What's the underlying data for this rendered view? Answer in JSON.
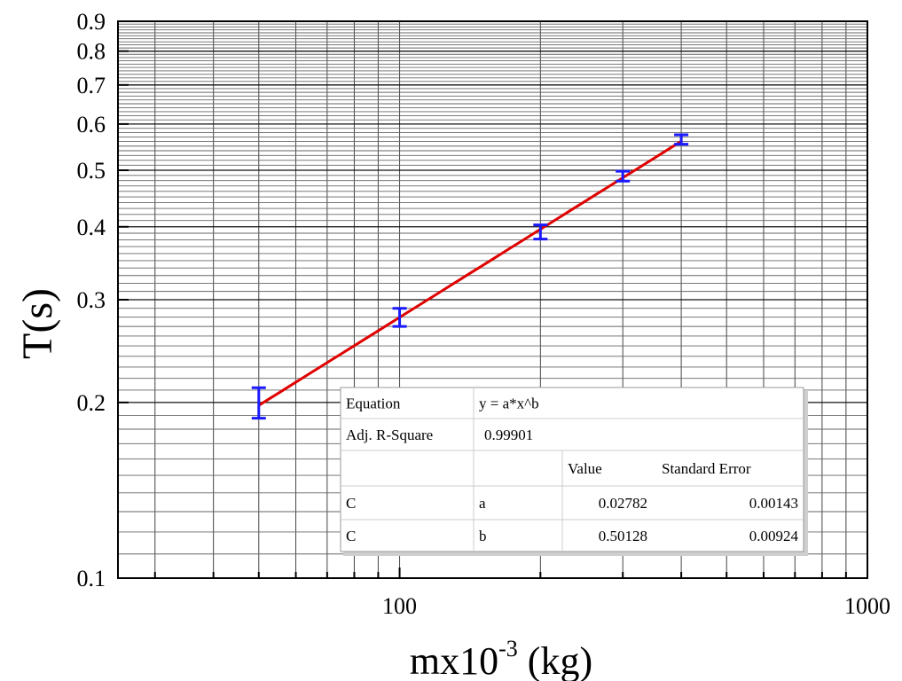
{
  "chart_data": {
    "type": "scatter",
    "scale": {
      "x": "log",
      "y": "log"
    },
    "xlabel": {
      "base": "mx10",
      "superscript": "-3",
      "unit": " (kg)"
    },
    "ylabel": "T(s)",
    "xlim": [
      25,
      1000
    ],
    "ylim": [
      0.1,
      0.9
    ],
    "x_ticks": [
      100,
      1000
    ],
    "x_tick_labels": [
      "100",
      "1000"
    ],
    "y_ticks": [
      0.1,
      0.2,
      0.3,
      0.4,
      0.5,
      0.6,
      0.7,
      0.8,
      0.9
    ],
    "y_tick_labels": [
      "0.1",
      "0.2",
      "0.3",
      "0.4",
      "0.5",
      "0.6",
      "0.7",
      "0.8",
      "0.9"
    ],
    "grid": true,
    "series": [
      {
        "x": [
          50,
          100,
          200,
          300,
          400
        ],
        "y": [
          0.199,
          0.279,
          0.392,
          0.488,
          0.564
        ],
        "err_low": [
          0.188,
          0.27,
          0.381,
          0.479,
          0.554
        ],
        "err_high": [
          0.212,
          0.29,
          0.403,
          0.498,
          0.575
        ],
        "color": "#1a1aff"
      }
    ],
    "fit": {
      "a": 0.02782,
      "b": 0.50128,
      "x_range": [
        50,
        400
      ],
      "color": "#e00000"
    },
    "fit_table": {
      "rows": [
        [
          "Equation",
          "y = a*x^b",
          "",
          ""
        ],
        [
          "Adj. R-Square",
          "0.99901",
          "",
          ""
        ],
        [
          "",
          "",
          "Value",
          "Standard Error"
        ],
        [
          "C",
          "a",
          "0.02782",
          "0.00143"
        ],
        [
          "C",
          "b",
          "0.50128",
          "0.00924"
        ]
      ]
    }
  }
}
